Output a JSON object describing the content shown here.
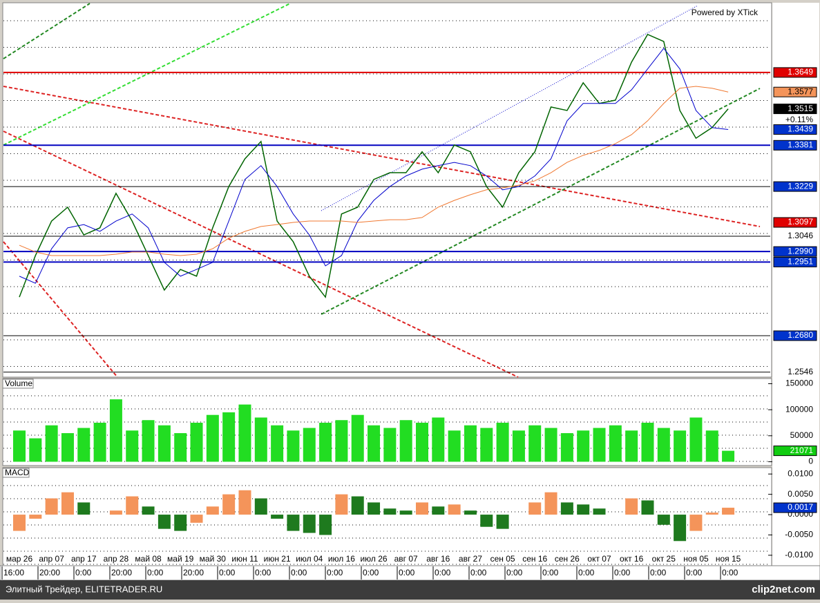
{
  "chart_data": [
    {
      "type": "line",
      "watermark": "Powered by XTick",
      "ylim": [
        1.253,
        1.3903
      ],
      "yticks": [
        {
          "value": 1.3649,
          "box": "#e00000",
          "line": "#e00000"
        },
        {
          "value": 1.3381,
          "box": "#0033cc",
          "line": "#0000c0"
        },
        {
          "value": 1.3229,
          "box": "#0033cc",
          "line": "#000000"
        },
        {
          "value": 1.3097,
          "box": "#e00000",
          "line": null
        },
        {
          "value": 1.3046,
          "box": null,
          "line": "#000000"
        },
        {
          "value": 1.299,
          "label": "1.2990",
          "box": "#0033cc",
          "line": "#0000c0"
        },
        {
          "value": 1.2951,
          "box": "#0033cc",
          "line": "#0000c0"
        },
        {
          "value": 1.268,
          "label": "1.2680",
          "box": "#0033cc",
          "line": "#000000"
        },
        {
          "value": 1.2546,
          "box": null,
          "line": "#000000"
        }
      ],
      "change_label": "+0.11%",
      "series": [
        {
          "color": "#006400",
          "box": "#000000",
          "values": [
            1.2822,
            1.2975,
            1.3102,
            1.3153,
            1.3051,
            1.3077,
            1.3204,
            1.3102,
            1.2975,
            1.2848,
            1.2924,
            1.2899,
            1.3077,
            1.3229,
            1.3331,
            1.3395,
            1.3102,
            1.3026,
            1.2899,
            1.2822,
            1.3128,
            1.3153,
            1.3255,
            1.328,
            1.328,
            1.3357,
            1.328,
            1.3382,
            1.3357,
            1.3229,
            1.3153,
            1.328,
            1.3357,
            1.3522,
            1.3509,
            1.3611,
            1.3535,
            1.3547,
            1.3687,
            1.3789,
            1.3763,
            1.3509,
            1.3407,
            1.3446,
            1.3515
          ]
        },
        {
          "color": "#0000cc",
          "box": "#0033cc",
          "values": [
            1.2899,
            1.2873,
            1.3,
            1.3077,
            1.3089,
            1.3064,
            1.3102,
            1.3128,
            1.3077,
            1.295,
            1.2899,
            1.2924,
            1.295,
            1.3102,
            1.3255,
            1.3306,
            1.3229,
            1.3128,
            1.3051,
            1.2937,
            1.2975,
            1.3102,
            1.3178,
            1.3229,
            1.3268,
            1.3293,
            1.3306,
            1.3318,
            1.3306,
            1.3268,
            1.3217,
            1.3229,
            1.3268,
            1.3331,
            1.3471,
            1.3535,
            1.3535,
            1.3535,
            1.3585,
            1.3662,
            1.3738,
            1.3662,
            1.3509,
            1.3446,
            1.3439
          ]
        },
        {
          "color": "#f07830",
          "box": "#f4945a",
          "values": [
            1.3013,
            1.2988,
            1.2975,
            1.2975,
            1.2975,
            1.2975,
            1.298,
            1.2988,
            1.2988,
            1.298,
            1.2975,
            1.298,
            1.3,
            1.3039,
            1.3064,
            1.3082,
            1.3089,
            1.3097,
            1.3102,
            1.3102,
            1.3102,
            1.3097,
            1.3102,
            1.3107,
            1.3107,
            1.3115,
            1.3153,
            1.3178,
            1.3199,
            1.3217,
            1.3224,
            1.3234,
            1.325,
            1.328,
            1.3318,
            1.3344,
            1.3362,
            1.3387,
            1.342,
            1.3471,
            1.3535,
            1.3591,
            1.3598,
            1.3591,
            1.3577
          ]
        }
      ]
    },
    {
      "type": "bar",
      "title": "Volume",
      "color": "#22dd22",
      "box": "#11cc11",
      "ylim": [
        -6000,
        160000
      ],
      "yticks": [
        150000,
        100000,
        50000,
        0
      ],
      "values": [
        60000,
        45000,
        70000,
        55000,
        65000,
        75000,
        120000,
        60000,
        80000,
        70000,
        55000,
        75000,
        90000,
        95000,
        110000,
        85000,
        70000,
        60000,
        65000,
        75000,
        80000,
        90000,
        70000,
        65000,
        80000,
        75000,
        85000,
        60000,
        70000,
        65000,
        75000,
        60000,
        70000,
        65000,
        55000,
        60000,
        65000,
        70000,
        60000,
        75000,
        65000,
        60000,
        85000,
        60000,
        21071
      ]
    },
    {
      "type": "bar",
      "title": "MACD",
      "colors": [
        "#f4945a",
        "#1e7a1e"
      ],
      "box": "#0033cc",
      "ylim": [
        -0.0124,
        0.0114
      ],
      "yticks": [
        {
          "value": 0.01,
          "label": "0.0100"
        },
        {
          "value": 0.005,
          "label": "0.0050"
        },
        {
          "value": 0,
          "label": "0.0000"
        },
        {
          "value": -0.005,
          "label": "-0.0050"
        },
        {
          "value": -0.01,
          "label": "-0.0100"
        }
      ],
      "values": [
        -0.004,
        -0.001,
        0.004,
        0.0055,
        0.003,
        0,
        0.001,
        0.0045,
        0.002,
        -0.0035,
        -0.004,
        -0.002,
        0.002,
        0.005,
        0.006,
        0.004,
        -0.001,
        -0.004,
        -0.0045,
        -0.005,
        0.005,
        0.0045,
        0.003,
        0.0015,
        0.001,
        0.003,
        0.002,
        0.0025,
        0.001,
        -0.003,
        -0.0035,
        0,
        0.003,
        0.0055,
        0.003,
        0.0025,
        0.0015,
        0,
        0.004,
        0.0035,
        -0.0025,
        -0.0065,
        -0.004,
        0.0005,
        0.0017
      ],
      "categories": [
        "мар 26",
        null,
        "апр 07",
        null,
        "апр 17",
        null,
        "апр 28",
        null,
        "май 08",
        null,
        "май 19",
        null,
        "май 30",
        null,
        "июн 11",
        null,
        "июн 21",
        null,
        "июл 04",
        null,
        "июл 16",
        null,
        "июл 26",
        null,
        "авг 07",
        null,
        "авг 16",
        null,
        "авг 27",
        null,
        "сен 05",
        null,
        "сен 16",
        null,
        "сен 26",
        null,
        "окт 07",
        null,
        "окт 16",
        null,
        "окт 25",
        null,
        "ноя 05",
        null,
        "ноя 15"
      ],
      "time_labels": [
        "16:00",
        "20:00",
        "0:00",
        "20:00",
        "0:00",
        "20:00",
        "0:00",
        "0:00",
        "0:00",
        "0:00",
        "0:00",
        "0:00",
        "0:00",
        "0:00",
        "0:00",
        "0:00",
        "0:00",
        "0:00",
        "0:00",
        "0:00",
        "0:00"
      ]
    }
  ],
  "footer": {
    "left": "Элитный Трейдер, ELITETRADER.RU",
    "right": "clip2net.com"
  }
}
